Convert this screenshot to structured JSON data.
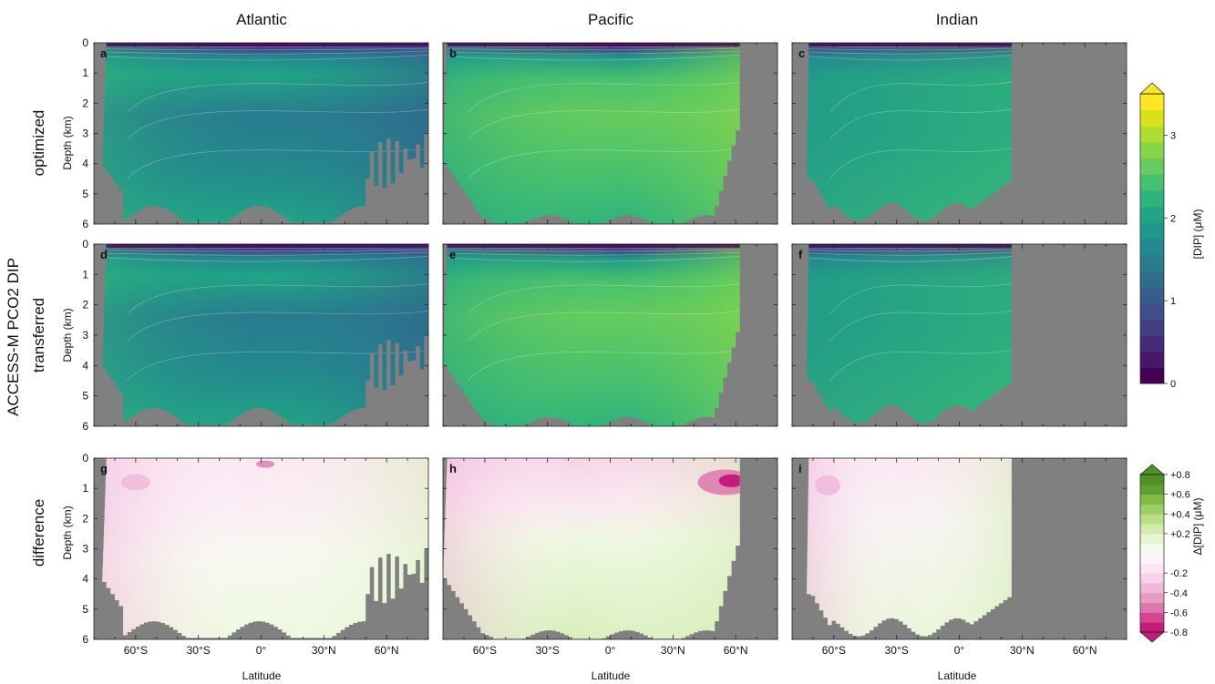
{
  "figure": {
    "super_ylabel": "ACCESS-M PCO2 DIP",
    "columns": [
      "Atlantic",
      "Pacific",
      "Indian"
    ],
    "rows": [
      "optimized",
      "transferred",
      "difference"
    ],
    "panel_letters": [
      "a",
      "b",
      "c",
      "d",
      "e",
      "f",
      "g",
      "h",
      "i"
    ],
    "ylabel": "Depth (km)",
    "xlabel": "Latitude",
    "land_color": "#808080"
  },
  "chart_data": {
    "type": "heatmap",
    "x_ticks": [
      -60,
      -30,
      0,
      30,
      60
    ],
    "x_tick_labels": [
      "60°S",
      "30°S",
      "0°",
      "30°N",
      "60°N"
    ],
    "xlim": [
      -80,
      80
    ],
    "y_ticks": [
      0,
      1,
      2,
      3,
      4,
      5,
      6
    ],
    "y_tick_labels": [
      "0",
      "1",
      "2",
      "3",
      "4",
      "5",
      "6"
    ],
    "ylim": [
      0,
      6
    ],
    "colorbar_top": {
      "label": "[DIP] (μM)",
      "range": [
        0,
        3.5
      ],
      "ticks": [
        0,
        1,
        2,
        3
      ],
      "tick_labels": [
        "0",
        "1",
        "2",
        "3"
      ],
      "extend": "max",
      "colors": [
        "#440154",
        "#481769",
        "#472a7a",
        "#433d84",
        "#3d4e8a",
        "#355e8d",
        "#2e6d8e",
        "#297b8e",
        "#23898e",
        "#1f978b",
        "#21a585",
        "#2eb37c",
        "#46c06f",
        "#65cb5e",
        "#89d548",
        "#b0dd2f",
        "#d8e219",
        "#fde725"
      ]
    },
    "colorbar_bottom": {
      "label": "Δ[DIP] (μM)",
      "range": [
        -0.8,
        0.8
      ],
      "ticks": [
        0.8,
        0.6,
        0.4,
        0.2,
        -0.2,
        -0.4,
        -0.6,
        -0.8
      ],
      "tick_labels": [
        "+0.8",
        "+0.6",
        "+0.4",
        "+0.2",
        "-0.2",
        "-0.4",
        "-0.6",
        "-0.8"
      ],
      "extend": "both",
      "colors": [
        "#c51b7d",
        "#d6468f",
        "#de77ae",
        "#e69dc3",
        "#f1b6da",
        "#f7d3e7",
        "#fbe7f1",
        "#fdf3f8",
        "#f5faec",
        "#e6f5d0",
        "#d2ecb0",
        "#b8e186",
        "#9cce67",
        "#7fbc41",
        "#5e9e33",
        "#4d9221"
      ]
    }
  }
}
